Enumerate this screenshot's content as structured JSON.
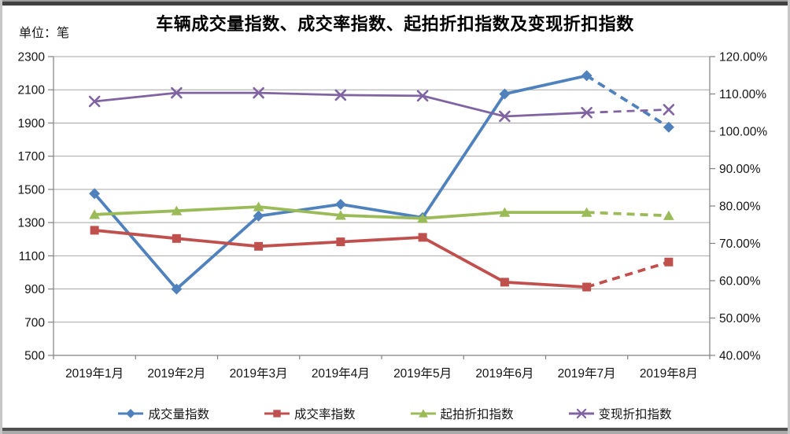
{
  "chart_meta": {
    "title": "车辆成交量指数、成交率指数、起拍折扣指数及变现折扣指数",
    "unit_label": "单位：笔"
  },
  "chart_data": {
    "type": "line",
    "title": "车辆成交量指数、成交率指数、起拍折扣指数及变现折扣指数",
    "unit_label": "单位：笔",
    "categories": [
      "2019年1月",
      "2019年2月",
      "2019年3月",
      "2019年4月",
      "2019年5月",
      "2019年6月",
      "2019年7月",
      "2019年8月"
    ],
    "series": [
      {
        "name": "成交量指数",
        "axis": "left",
        "color": "#4F81BD",
        "marker": "diamond",
        "values": [
          1475,
          900,
          1340,
          1410,
          1330,
          2075,
          2185,
          1875
        ]
      },
      {
        "name": "成交率指数",
        "axis": "right",
        "color": "#C0504D",
        "marker": "square",
        "values": [
          73.5,
          71.3,
          69.2,
          70.4,
          71.6,
          59.6,
          58.3,
          65.0
        ]
      },
      {
        "name": "起拍折扣指数",
        "axis": "right",
        "color": "#9BBB59",
        "marker": "triangle",
        "values": [
          77.7,
          78.7,
          79.8,
          77.5,
          76.7,
          78.3,
          78.3,
          77.4
        ]
      },
      {
        "name": "变现折扣指数",
        "axis": "right",
        "color": "#8064A2",
        "marker": "x",
        "values": [
          108.0,
          110.3,
          110.3,
          109.7,
          109.5,
          104.0,
          105.0,
          105.8
        ]
      }
    ],
    "axis_left": {
      "min": 500,
      "max": 2300,
      "step": 200,
      "tick_labels": [
        "500",
        "700",
        "900",
        "1100",
        "1300",
        "1500",
        "1700",
        "1900",
        "2100",
        "2300"
      ]
    },
    "axis_right": {
      "min": 40,
      "max": 120,
      "step": 10,
      "tick_labels": [
        "40.00%",
        "50.00%",
        "60.00%",
        "70.00%",
        "80.00%",
        "90.00%",
        "100.00%",
        "110.00%",
        "120.00%"
      ]
    },
    "dashed_last_segment": true,
    "grid": "horizontal",
    "legend_position": "bottom",
    "grid_color": "#a6a6a6",
    "axis_color": "#808080"
  }
}
